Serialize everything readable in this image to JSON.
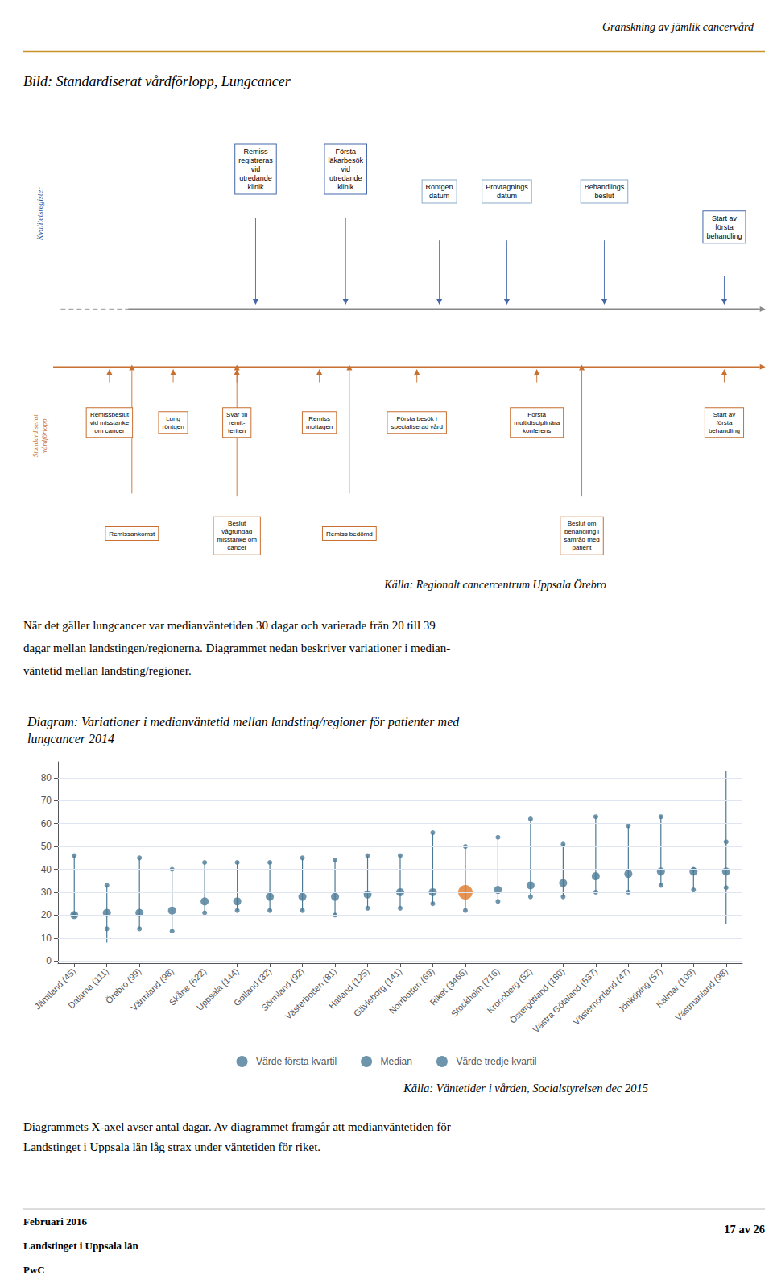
{
  "chart_data": {
    "type": "scatter",
    "title": "Diagram: Variationer i medianväntetid mellan landsting/regioner för patienter med\nlungcancer 2014",
    "categories": [
      "Jämtland (45)",
      "Dalarna (111)",
      "Örebro (99)",
      "Värmland (98)",
      "Skåne (622)",
      "Uppsala (144)",
      "Gotland (32)",
      "Sörmland (92)",
      "Västerbotten (81)",
      "Halland (125)",
      "Gävleborg (141)",
      "Norrbotten (69)",
      "Riket (3466)",
      "Stockholm (716)",
      "Kronoberg (52)",
      "Östergötland (180)",
      "Västra Götaland (537)",
      "Västernorrland (47)",
      "Jönköping (57)",
      "Kalmar (109)",
      "Västmanland (98)"
    ],
    "series": [
      {
        "name": "Värde första kvartil",
        "color": "#4a7a96",
        "values": [
          20,
          14,
          14,
          13,
          21,
          22,
          22,
          22,
          20,
          23,
          23,
          25,
          22,
          26,
          28,
          28,
          30,
          30,
          33,
          31,
          32
        ]
      },
      {
        "name": "Median",
        "color": "#4a7a96",
        "values": [
          20,
          21,
          21,
          22,
          26,
          26,
          28,
          28,
          28,
          29,
          30,
          30,
          30,
          31,
          33,
          34,
          37,
          38,
          39,
          39,
          39
        ],
        "colors": [
          "#4a7a96",
          "#4a7a96",
          "#4a7a96",
          "#4a7a96",
          "#4a7a96",
          "#4a7a96",
          "#4a7a96",
          "#4a7a96",
          "#4a7a96",
          "#4a7a96",
          "#4a7a96",
          "#4a7a96",
          "#e07828",
          "#4a7a96",
          "#4a7a96",
          "#4a7a96",
          "#4a7a96",
          "#4a7a96",
          "#4a7a96",
          "#4a7a96",
          "#4a7a96"
        ]
      },
      {
        "name": "Värde tredje kvartil",
        "color": "#4a7a96",
        "values": [
          46,
          33,
          45,
          40,
          43,
          43,
          43,
          45,
          44,
          46,
          46,
          56,
          50,
          54,
          62,
          51,
          63,
          59,
          63,
          40,
          52
        ]
      }
    ],
    "whisker_low": [
      null,
      8,
      null,
      null,
      null,
      null,
      null,
      null,
      null,
      null,
      null,
      null,
      null,
      null,
      null,
      null,
      null,
      null,
      null,
      null,
      16
    ],
    "whisker_high": [
      null,
      null,
      null,
      null,
      null,
      null,
      null,
      null,
      null,
      null,
      null,
      null,
      null,
      null,
      62,
      null,
      63,
      null,
      63,
      null,
      83
    ],
    "ylim": [
      -1,
      87
    ],
    "yticks": [
      0,
      10,
      20,
      30,
      40,
      50,
      60,
      70,
      80
    ],
    "grid": true,
    "legend": "bottom",
    "annotations": [
      "Granskning av jämlik cancervård",
      "Bild: Standardiserat vårdförlopp, Lungcancer",
      "Kvalitetsregister",
      "Standardiserat\nvårdförlopp",
      "Remiss\nregistreras\nvid\nutredande\nklinik",
      "Första\nläkarbesök\nvid\nutredande\nklinik",
      "Röntgen\ndatum",
      "Provtagnings\ndatum",
      "Behandlings\nbeslut",
      "Start av\nförsta\nbehandling",
      "Remissbeslut\nvid misstanke\nom cancer",
      "Lung\nröntgen",
      "Svar till\nremit-\nteriten",
      "Remiss\nmottagen",
      "Första besök i\nspecialiserad vård",
      "Första\nmultidisciplinära\nkonferens",
      "Start av\nförsta\nbehandling",
      "Remissankomst",
      "Beslut\nvågrundad\nmisstanke om\ncancer",
      "Remiss bedömd",
      "Beslut om\nbehandling i\nsamråd med\npatient",
      "Källa: Regionalt cancercentrum Uppsala Örebro",
      "När det gäller lungcancer var medianväntetiden 30 dagar och varierade från 20 till 39\ndagar mellan landstingen/regionerna. Diagrammet nedan beskriver variationer i median-\nväntetid mellan landsting/regioner.",
      "Källa: Väntetider i vården, Socialstyrelsen dec 2015",
      "Diagrammets X-axel avser antal dagar. Av diagrammet framgår att medianväntetiden för\nLandstinget i Uppsala län låg strax under väntetiden för riket.",
      "Februari 2016",
      "Landstinget i Uppsala län",
      "PwC",
      "17 av 26"
    ]
  }
}
